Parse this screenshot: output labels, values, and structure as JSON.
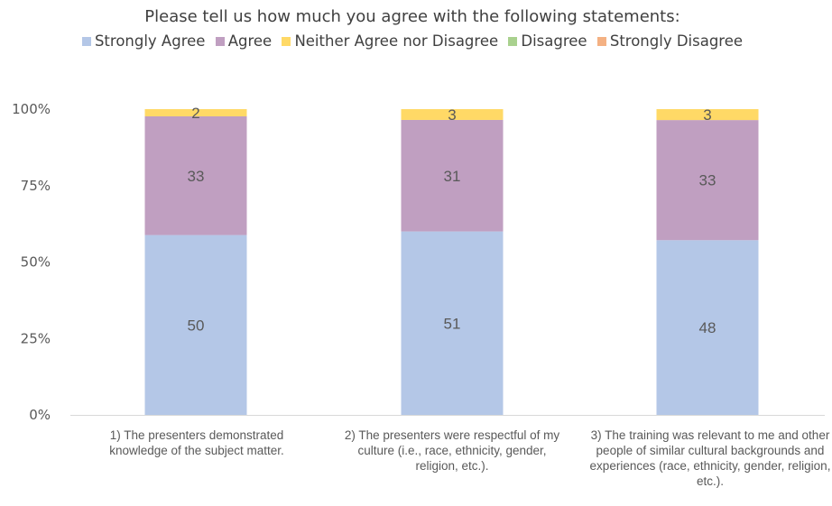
{
  "chart_data": {
    "type": "bar",
    "stacked": "percent",
    "title": "Please tell us how much you agree with the following statements:",
    "legend_position": "top",
    "categories": [
      "1) The presenters demonstrated knowledge of the subject matter.",
      "2) The presenters were respectful of my culture (i.e., race, ethnicity, gender, religion, etc.).",
      "3) The training was relevant to me and other people of similar cultural backgrounds and experiences (race, ethnicity, gender, religion, etc.)."
    ],
    "y_ticks": [
      "0%",
      "25%",
      "50%",
      "75%",
      "100%"
    ],
    "ylim": [
      0,
      100
    ],
    "grid": false,
    "series": [
      {
        "name": "Strongly Agree",
        "color": "#b4c7e7",
        "values": [
          50,
          51,
          48
        ],
        "labels": [
          "50",
          "51",
          "48"
        ]
      },
      {
        "name": "Agree",
        "color": "#c09fc1",
        "values": [
          33,
          31,
          33
        ],
        "labels": [
          "33",
          "31",
          "33"
        ]
      },
      {
        "name": "Neither Agree nor Disagree",
        "color": "#ffd966",
        "values": [
          2,
          3,
          3
        ],
        "labels": [
          "2",
          "3",
          "3"
        ]
      },
      {
        "name": "Disagree",
        "color": "#a9d18e",
        "values": [
          0,
          0,
          0
        ],
        "labels": [
          "",
          "",
          ""
        ]
      },
      {
        "name": "Strongly Disagree",
        "color": "#f4b183",
        "values": [
          0,
          0,
          0
        ],
        "labels": [
          "",
          "",
          ""
        ]
      }
    ]
  }
}
